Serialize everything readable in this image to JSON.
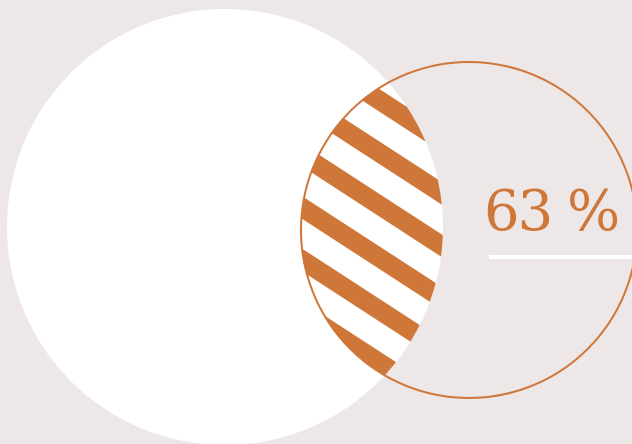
{
  "overlap": {
    "percentage_label": "63 %",
    "value_percent": 63
  },
  "colors": {
    "background": "#ede8e7",
    "filled_circle": "#ffffff",
    "accent": "#cf7639",
    "stripe_gap": "#ffffff"
  }
}
